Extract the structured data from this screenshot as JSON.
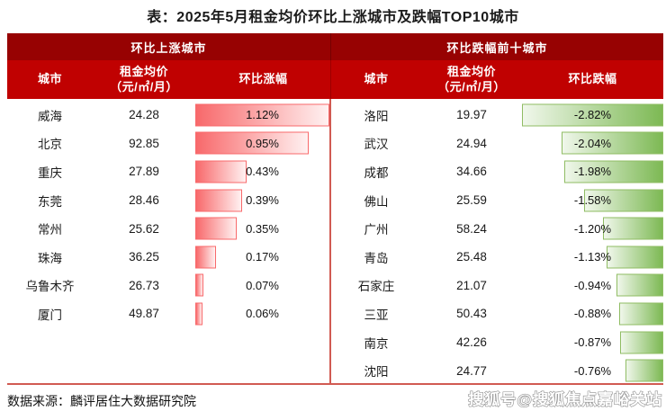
{
  "title": "表：2025年5月租金均价环比上涨城市及跌幅TOP10城市",
  "source_note": "数据来源：麟评居住大数据研究院",
  "watermark": "搜狐号@搜狐焦点嘉峪关站",
  "colors": {
    "group_header_bg": "#970202",
    "column_header_bg": "#C00101",
    "header_text": "#FFFFFF",
    "body_text": "#1A1A1A",
    "divider": "#D15A52",
    "rise_bar_start": "#F8696B",
    "rise_bar_end": "#FFF1F1",
    "rise_bar_border": "#F8696B",
    "fall_bar_start": "#F0F7EB",
    "fall_bar_end": "#7DB954",
    "fall_bar_border": "#8FBC63"
  },
  "rise_table": {
    "group_header": "环比上涨城市",
    "columns": {
      "city": "城市",
      "price_line1": "租金均价",
      "price_line2": "（元/㎡/月）",
      "change": "环比涨幅"
    },
    "rows": [
      {
        "city": "威海",
        "price": "24.28",
        "change": "1.12%",
        "pct": 1.12
      },
      {
        "city": "北京",
        "price": "92.85",
        "change": "0.95%",
        "pct": 0.95
      },
      {
        "city": "重庆",
        "price": "27.89",
        "change": "0.43%",
        "pct": 0.43
      },
      {
        "city": "东莞",
        "price": "28.46",
        "change": "0.39%",
        "pct": 0.39
      },
      {
        "city": "常州",
        "price": "25.62",
        "change": "0.35%",
        "pct": 0.35
      },
      {
        "city": "珠海",
        "price": "36.25",
        "change": "0.17%",
        "pct": 0.17
      },
      {
        "city": "乌鲁木齐",
        "price": "26.73",
        "change": "0.07%",
        "pct": 0.07
      },
      {
        "city": "厦门",
        "price": "49.87",
        "change": "0.06%",
        "pct": 0.06
      }
    ]
  },
  "fall_table": {
    "group_header": "环比跌幅前十城市",
    "columns": {
      "city": "城市",
      "price_line1": "租金均价",
      "price_line2": "（元/㎡/月）",
      "change": "环比跌幅"
    },
    "rows": [
      {
        "city": "洛阳",
        "price": "19.97",
        "change": "-2.82%",
        "pct": 2.82
      },
      {
        "city": "武汉",
        "price": "24.94",
        "change": "-2.04%",
        "pct": 2.04
      },
      {
        "city": "成都",
        "price": "34.66",
        "change": "-1.98%",
        "pct": 1.98
      },
      {
        "city": "佛山",
        "price": "25.59",
        "change": "-1.58%",
        "pct": 1.58
      },
      {
        "city": "广州",
        "price": "58.24",
        "change": "-1.20%",
        "pct": 1.2
      },
      {
        "city": "青岛",
        "price": "25.48",
        "change": "-1.13%",
        "pct": 1.13
      },
      {
        "city": "石家庄",
        "price": "21.07",
        "change": "-0.94%",
        "pct": 0.94
      },
      {
        "city": "三亚",
        "price": "50.43",
        "change": "-0.88%",
        "pct": 0.88
      },
      {
        "city": "南京",
        "price": "42.26",
        "change": "-0.87%",
        "pct": 0.87
      },
      {
        "city": "沈阳",
        "price": "24.77",
        "change": "-0.76%",
        "pct": 0.76
      }
    ]
  },
  "chart_data": [
    {
      "type": "table",
      "title": "环比上涨城市",
      "columns": [
        "城市",
        "租金均价（元/㎡/月）",
        "环比涨幅"
      ],
      "rows": [
        [
          "威海",
          24.28,
          1.12
        ],
        [
          "北京",
          92.85,
          0.95
        ],
        [
          "重庆",
          27.89,
          0.43
        ],
        [
          "东莞",
          28.46,
          0.39
        ],
        [
          "常州",
          25.62,
          0.35
        ],
        [
          "珠海",
          36.25,
          0.17
        ],
        [
          "乌鲁木齐",
          26.73,
          0.07
        ],
        [
          "厦门",
          49.87,
          0.06
        ]
      ],
      "bar_column": "环比涨幅",
      "bar_unit": "%",
      "bar_style": "red gradient data bar, left-aligned",
      "bar_max": 1.12
    },
    {
      "type": "table",
      "title": "环比跌幅前十城市",
      "columns": [
        "城市",
        "租金均价（元/㎡/月）",
        "环比跌幅"
      ],
      "rows": [
        [
          "洛阳",
          19.97,
          -2.82
        ],
        [
          "武汉",
          24.94,
          -2.04
        ],
        [
          "成都",
          34.66,
          -1.98
        ],
        [
          "佛山",
          25.59,
          -1.58
        ],
        [
          "广州",
          58.24,
          -1.2
        ],
        [
          "青岛",
          25.48,
          -1.13
        ],
        [
          "石家庄",
          21.07,
          -0.94
        ],
        [
          "三亚",
          50.43,
          -0.88
        ],
        [
          "南京",
          42.26,
          -0.87
        ],
        [
          "沈阳",
          24.77,
          -0.76
        ]
      ],
      "bar_column": "环比跌幅",
      "bar_unit": "%",
      "bar_style": "green gradient data bar, right-aligned",
      "bar_max": 2.82
    }
  ]
}
